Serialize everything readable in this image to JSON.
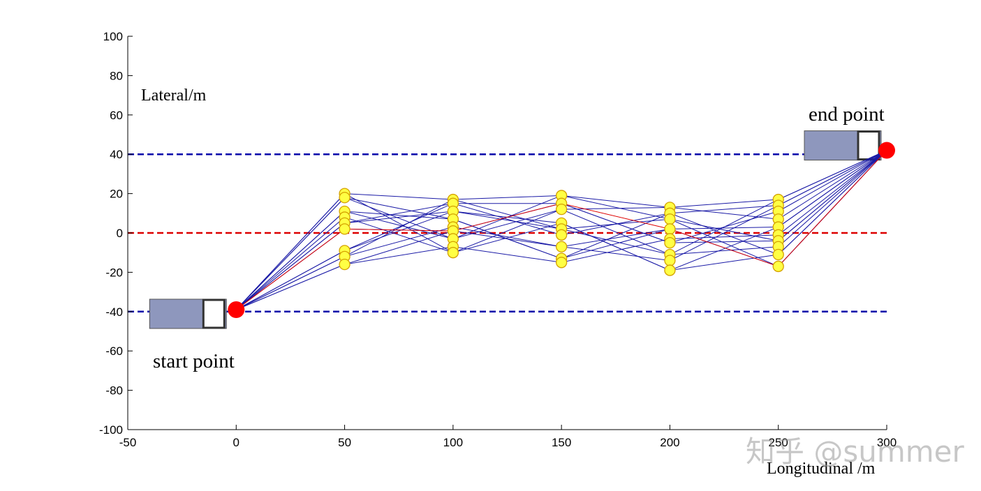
{
  "chart_data": {
    "type": "scatter",
    "title": "",
    "xlabel": "Longitudinal /m",
    "ylabel": "Lateral/m",
    "xlim": [
      -50,
      300
    ],
    "ylim": [
      -100,
      100
    ],
    "xticks": [
      "-50",
      "0",
      "50",
      "100",
      "150",
      "200",
      "250",
      "300"
    ],
    "yticks": [
      "100",
      "80",
      "60",
      "40",
      "20",
      "0",
      "-20",
      "-40",
      "-60",
      "-80",
      "-100"
    ],
    "grid": false,
    "reference_lines": [
      {
        "name": "upper lane boundary",
        "y": 40,
        "style": "dashed",
        "color": "#0000aa"
      },
      {
        "name": "centerline",
        "y": 0,
        "style": "dashed",
        "color": "#dd0000"
      },
      {
        "name": "lower lane boundary",
        "y": -40,
        "style": "dashed",
        "color": "#0000aa"
      }
    ],
    "start": {
      "x": 0,
      "y": -39,
      "label": "start point"
    },
    "end": {
      "x": 300,
      "y": 42,
      "label": "end point"
    },
    "sample_points": [
      {
        "x": 50,
        "ys": [
          20,
          18,
          11,
          8,
          5,
          2,
          -9,
          -12,
          -16
        ]
      },
      {
        "x": 100,
        "ys": [
          17,
          15,
          11,
          7,
          3,
          1,
          -3,
          -7,
          -10
        ]
      },
      {
        "x": 150,
        "ys": [
          19,
          15,
          12,
          5,
          2,
          -1,
          -7,
          -13,
          -15
        ]
      },
      {
        "x": 200,
        "ys": [
          13,
          10,
          7,
          2,
          -3,
          -5,
          -11,
          -14,
          -19
        ]
      },
      {
        "x": 250,
        "ys": [
          17,
          14,
          11,
          7,
          3,
          -1,
          -4,
          -7,
          -11,
          -17
        ]
      }
    ],
    "paths": [
      [
        [
          0,
          -39
        ],
        [
          50,
          20
        ],
        [
          100,
          17
        ],
        [
          150,
          19
        ],
        [
          200,
          13
        ],
        [
          250,
          17
        ],
        [
          300,
          42
        ]
      ],
      [
        [
          0,
          -39
        ],
        [
          50,
          18
        ],
        [
          100,
          -3
        ],
        [
          150,
          12
        ],
        [
          200,
          -11
        ],
        [
          250,
          -7
        ],
        [
          300,
          42
        ]
      ],
      [
        [
          0,
          -39
        ],
        [
          50,
          11
        ],
        [
          100,
          7
        ],
        [
          150,
          -13
        ],
        [
          200,
          2
        ],
        [
          250,
          -17
        ],
        [
          300,
          42
        ]
      ],
      [
        [
          0,
          -39
        ],
        [
          50,
          8
        ],
        [
          100,
          -10
        ],
        [
          150,
          5
        ],
        [
          200,
          -19
        ],
        [
          250,
          3
        ],
        [
          300,
          42
        ]
      ],
      [
        [
          0,
          -39
        ],
        [
          50,
          5
        ],
        [
          100,
          15
        ],
        [
          150,
          -1
        ],
        [
          200,
          10
        ],
        [
          250,
          -11
        ],
        [
          300,
          42
        ]
      ],
      [
        [
          0,
          -39
        ],
        [
          50,
          2
        ],
        [
          100,
          1
        ],
        [
          150,
          15
        ],
        [
          200,
          -5
        ],
        [
          250,
          11
        ],
        [
          300,
          42
        ]
      ],
      [
        [
          0,
          -39
        ],
        [
          50,
          -9
        ],
        [
          100,
          11
        ],
        [
          150,
          2
        ],
        [
          200,
          7
        ],
        [
          250,
          -4
        ],
        [
          300,
          42
        ]
      ],
      [
        [
          0,
          -39
        ],
        [
          50,
          -12
        ],
        [
          100,
          3
        ],
        [
          150,
          -7
        ],
        [
          200,
          -14
        ],
        [
          250,
          14
        ],
        [
          300,
          42
        ]
      ],
      [
        [
          0,
          -39
        ],
        [
          50,
          -16
        ],
        [
          100,
          -7
        ],
        [
          150,
          -15
        ],
        [
          200,
          -3
        ],
        [
          250,
          -1
        ],
        [
          300,
          42
        ]
      ],
      [
        [
          0,
          -39
        ],
        [
          50,
          20
        ],
        [
          100,
          -10
        ],
        [
          150,
          12
        ],
        [
          200,
          13
        ],
        [
          250,
          7
        ],
        [
          300,
          42
        ]
      ],
      [
        [
          0,
          -39
        ],
        [
          50,
          -12
        ],
        [
          100,
          17
        ],
        [
          150,
          2
        ],
        [
          200,
          -11
        ],
        [
          250,
          17
        ],
        [
          300,
          42
        ]
      ],
      [
        [
          0,
          -39
        ],
        [
          50,
          11
        ],
        [
          100,
          -3
        ],
        [
          150,
          19
        ],
        [
          200,
          7
        ],
        [
          250,
          -17
        ],
        [
          300,
          42
        ]
      ],
      [
        [
          0,
          -39
        ],
        [
          50,
          -16
        ],
        [
          100,
          1
        ],
        [
          150,
          -7
        ],
        [
          200,
          2
        ],
        [
          250,
          3
        ],
        [
          300,
          42
        ]
      ],
      [
        [
          0,
          -39
        ],
        [
          50,
          5
        ],
        [
          100,
          11
        ],
        [
          150,
          5
        ],
        [
          200,
          -19
        ],
        [
          250,
          -11
        ],
        [
          300,
          42
        ]
      ],
      [
        [
          0,
          -39
        ],
        [
          50,
          18
        ],
        [
          100,
          7
        ],
        [
          150,
          -13
        ],
        [
          200,
          10
        ],
        [
          250,
          14
        ],
        [
          300,
          42
        ]
      ],
      [
        [
          0,
          -39
        ],
        [
          50,
          -9
        ],
        [
          100,
          15
        ],
        [
          150,
          15
        ],
        [
          200,
          -5
        ],
        [
          250,
          -4
        ],
        [
          300,
          42
        ]
      ]
    ],
    "red_path": [
      [
        0,
        -39
      ],
      [
        50,
        2
      ],
      [
        100,
        1
      ],
      [
        150,
        15
      ],
      [
        200,
        2
      ],
      [
        250,
        -17
      ],
      [
        300,
        42
      ]
    ],
    "colors": {
      "path": "#1a1aa6",
      "red_path": "#dd0000",
      "marker_fill": "#ffff44",
      "marker_edge": "#d4a000",
      "endpoint": "#ff0000",
      "vehicle_body": "#8e97bd"
    }
  },
  "annotations": {
    "start_label": "start point",
    "end_label": "end point",
    "ylabel_text": "Lateral/m",
    "xlabel_text": "Longitudinal /m"
  },
  "watermark": "知乎 @summer"
}
